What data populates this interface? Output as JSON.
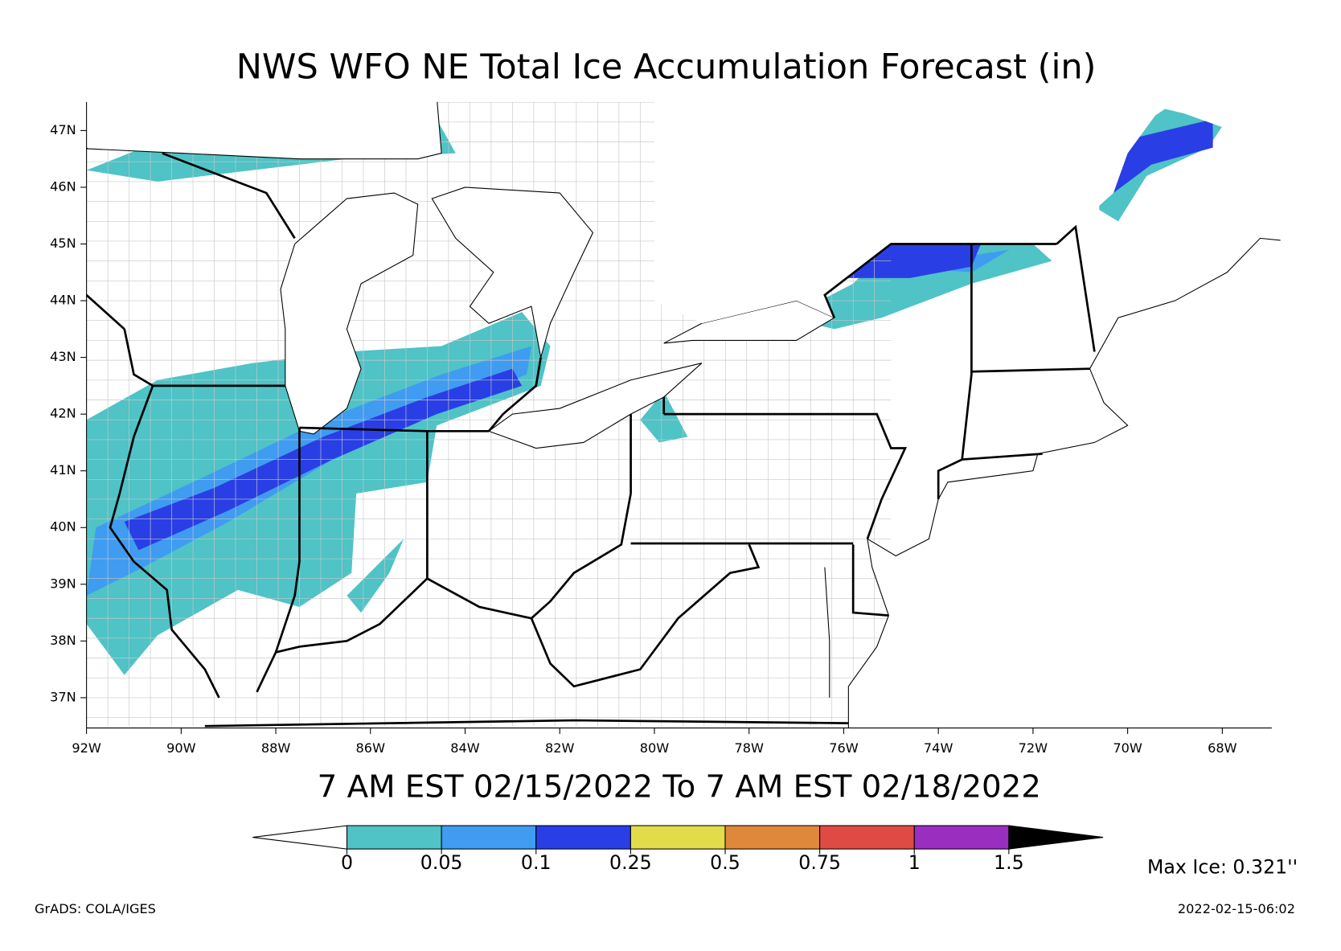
{
  "title": "NWS WFO NE Total Ice Accumulation Forecast (in)",
  "map": {
    "lat_labels": [
      "47N",
      "46N",
      "45N",
      "44N",
      "43N",
      "42N",
      "41N",
      "40N",
      "39N",
      "38N",
      "37N"
    ],
    "lon_labels": [
      "92W",
      "90W",
      "88W",
      "86W",
      "84W",
      "82W",
      "80W",
      "78W",
      "76W",
      "74W",
      "72W",
      "70W",
      "68W"
    ]
  },
  "period": "7 AM EST 02/15/2022 To 7 AM EST 02/18/2022",
  "colorbar": {
    "levels": [
      "0",
      "0.05",
      "0.1",
      "0.25",
      "0.5",
      "0.75",
      "1",
      "1.5"
    ],
    "colors": [
      "#4fc3c6",
      "#3f9cf0",
      "#2a3ee6",
      "#e2dc4a",
      "#e0883a",
      "#e04a45",
      "#9a2ec0"
    ]
  },
  "max_ice": "Max Ice: 0.321''",
  "credit": "GrADS: COLA/IGES",
  "timestamp": "2022-02-15-06:02"
}
